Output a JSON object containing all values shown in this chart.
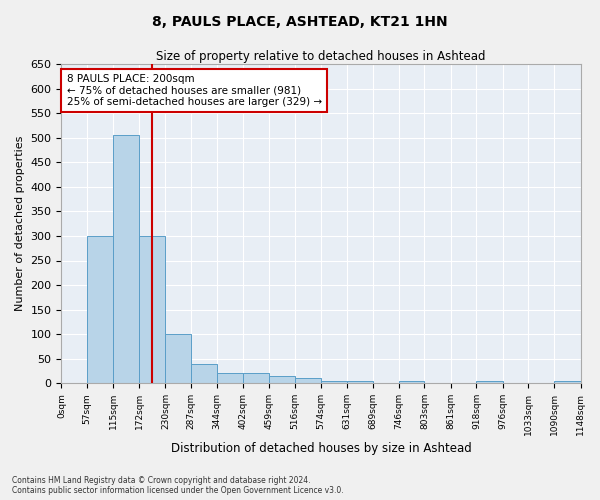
{
  "title": "8, PAULS PLACE, ASHTEAD, KT21 1HN",
  "subtitle": "Size of property relative to detached houses in Ashtead",
  "xlabel": "Distribution of detached houses by size in Ashtead",
  "ylabel": "Number of detached properties",
  "bar_color": "#b8d4e8",
  "bar_edge_color": "#5a9ec8",
  "background_color": "#e8eef5",
  "grid_color": "#ffffff",
  "annotation_text": "8 PAULS PLACE: 200sqm\n← 75% of detached houses are smaller (981)\n25% of semi-detached houses are larger (329) →",
  "vline_color": "#cc0000",
  "footnote": "Contains HM Land Registry data © Crown copyright and database right 2024.\nContains public sector information licensed under the Open Government Licence v3.0.",
  "bins": [
    0,
    57,
    115,
    172,
    230,
    287,
    344,
    402,
    459,
    516,
    574,
    631,
    689,
    746,
    803,
    861,
    918,
    976,
    1033,
    1090,
    1148
  ],
  "bar_heights": [
    0,
    300,
    505,
    300,
    100,
    40,
    20,
    20,
    15,
    10,
    5,
    5,
    0,
    5,
    0,
    0,
    5,
    0,
    0,
    5
  ],
  "vline_x": 200,
  "ylim": [
    0,
    650
  ],
  "yticks": [
    0,
    50,
    100,
    150,
    200,
    250,
    300,
    350,
    400,
    450,
    500,
    550,
    600,
    650
  ],
  "fig_width": 6.0,
  "fig_height": 5.0,
  "fig_bg": "#f0f0f0"
}
